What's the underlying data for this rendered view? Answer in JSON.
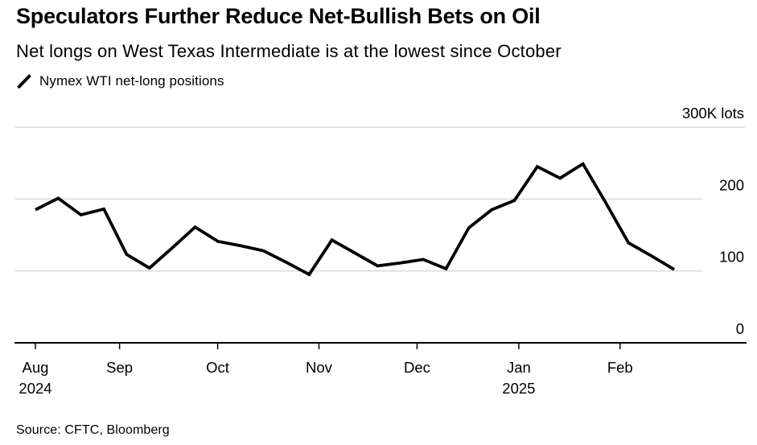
{
  "header": {
    "title": "Speculators Further Reduce Net-Bullish Bets on Oil",
    "subtitle": "Net longs on West Texas Intermediate is at the lowest since October",
    "legend": {
      "marker_icon": "diagonal-line-segment",
      "label": "Nymex WTI net-long positions",
      "color": "#000000"
    }
  },
  "footer": {
    "source": "Source: CFTC, Bloomberg"
  },
  "chart_data": {
    "type": "line",
    "title": "Nymex WTI net-long positions",
    "period_shown": "Aug 2024 - Feb 2025",
    "unit": "K lots",
    "grid": "horizontal",
    "legend_position": "top-left",
    "x": {
      "description": "weekly observations",
      "n_points": 29,
      "month_ticks": [
        {
          "label": "Aug",
          "year_label": "2024",
          "week_index": 0
        },
        {
          "label": "Sep",
          "week_index": 3.69
        },
        {
          "label": "Oct",
          "week_index": 7.99
        },
        {
          "label": "Nov",
          "week_index": 12.43
        },
        {
          "label": "Dec",
          "week_index": 16.73
        },
        {
          "label": "Jan",
          "year_label": "2025",
          "week_index": 21.19
        },
        {
          "label": "Feb",
          "week_index": 25.63
        }
      ]
    },
    "y": {
      "range": [
        0,
        300
      ],
      "side": "right",
      "ticks": [
        {
          "value": 0,
          "label": "0"
        },
        {
          "value": 100,
          "label": "100"
        },
        {
          "value": 200,
          "label": "200"
        },
        {
          "value": 300,
          "label": "300K lots"
        }
      ]
    },
    "series": [
      {
        "name": "Nymex WTI net-long positions",
        "color": "#000000",
        "values": [
          185,
          201,
          178,
          186,
          123,
          104,
          132,
          161,
          141,
          135,
          128,
          112,
          95,
          143,
          125,
          107,
          111,
          116,
          103,
          160,
          185,
          198,
          245,
          229,
          249,
          195,
          139,
          121,
          102
        ]
      }
    ],
    "colors": {
      "grid": "#d8d8d8",
      "axis": "#000000",
      "text": "#000000",
      "background": "#ffffff"
    }
  }
}
